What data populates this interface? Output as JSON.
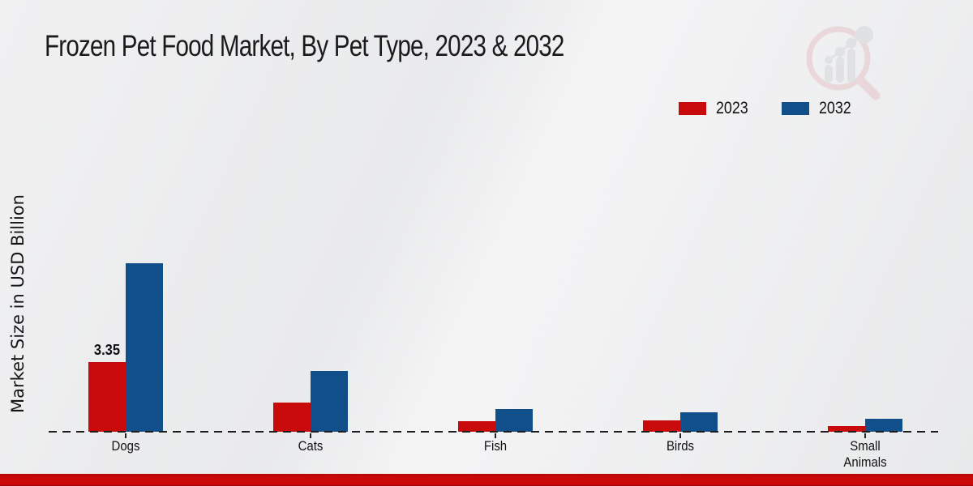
{
  "title": "Frozen Pet Food Market, By Pet Type, 2023 & 2032",
  "ylabel": "Market Size in USD Billion",
  "legend": {
    "items": [
      {
        "label": "2023",
        "color": "#c80a0a"
      },
      {
        "label": "2032",
        "color": "#114f8b"
      }
    ]
  },
  "colors": {
    "series_2023": "#c80a0a",
    "series_2032": "#114f8b",
    "footer_strip": "#c40808",
    "axis": "#1c1c1c"
  },
  "chart_data": {
    "type": "bar",
    "title": "Frozen Pet Food Market, By Pet Type, 2023 & 2032",
    "ylabel": "Market Size in USD Billion",
    "xlabel": "",
    "categories": [
      "Dogs",
      "Cats",
      "Fish",
      "Birds",
      "Small Animals"
    ],
    "series": [
      {
        "name": "2023",
        "color": "#c80a0a",
        "values": [
          3.35,
          1.4,
          0.5,
          0.55,
          0.27
        ]
      },
      {
        "name": "2032",
        "color": "#114f8b",
        "values": [
          8.1,
          2.9,
          1.1,
          0.95,
          0.62
        ]
      }
    ],
    "annotations": [
      {
        "category_index": 0,
        "series_index": 0,
        "text": "3.35"
      }
    ],
    "ylim": [
      0,
      9
    ],
    "grid": false,
    "baseline_style": "dashed",
    "legend_position": "top-right"
  },
  "watermark": {
    "name": "market-research-magnifier-logo"
  }
}
